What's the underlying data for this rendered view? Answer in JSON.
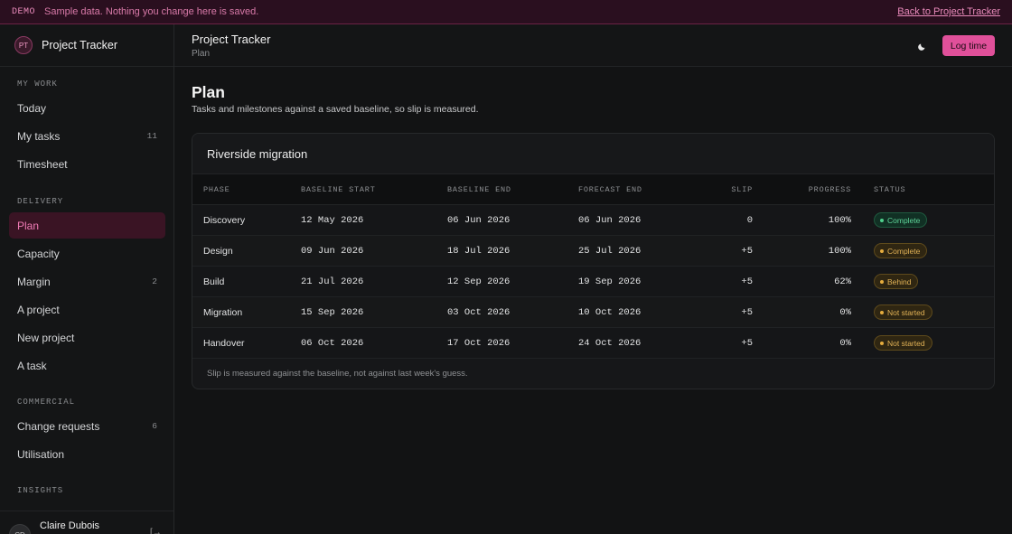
{
  "banner": {
    "tag": "DEMO",
    "message": "Sample data. Nothing you change here is saved.",
    "back_link": "Back to Project Tracker"
  },
  "brand": {
    "initials": "PT",
    "name": "Project Tracker"
  },
  "sidebar": {
    "sections": [
      {
        "title": "MY WORK"
      },
      {
        "title": "DELIVERY"
      },
      {
        "title": "COMMERCIAL"
      },
      {
        "title": "INSIGHTS"
      }
    ],
    "items": [
      {
        "label": "Today",
        "count": ""
      },
      {
        "label": "My tasks",
        "count": "11"
      },
      {
        "label": "Timesheet",
        "count": ""
      },
      {
        "label": "Plan",
        "count": ""
      },
      {
        "label": "Capacity",
        "count": ""
      },
      {
        "label": "Margin",
        "count": "2"
      },
      {
        "label": "A project",
        "count": ""
      },
      {
        "label": "New project",
        "count": ""
      },
      {
        "label": "A task",
        "count": ""
      },
      {
        "label": "Change requests",
        "count": "6"
      },
      {
        "label": "Utilisation",
        "count": ""
      }
    ],
    "active_item": "Plan",
    "user": {
      "initials": "CD",
      "name": "Claire Dubois",
      "logout_glyph": "[→"
    }
  },
  "header": {
    "title": "Project Tracker",
    "subtitle": "Plan",
    "theme_icon": "moon-icon",
    "log_time_label": "Log time"
  },
  "page": {
    "title": "Plan",
    "subtitle": "Tasks and milestones against a saved baseline, so slip is measured."
  },
  "card": {
    "title": "Riverside migration",
    "columns": [
      "PHASE",
      "BASELINE START",
      "BASELINE END",
      "FORECAST END",
      "SLIP",
      "PROGRESS",
      "STATUS"
    ],
    "rows": [
      {
        "phase": "Discovery",
        "baseline_start": "12 May 2026",
        "baseline_end": "06 Jun 2026",
        "forecast_end": "06 Jun 2026",
        "slip": "0",
        "progress": "100%",
        "status": "Complete"
      },
      {
        "phase": "Design",
        "baseline_start": "09 Jun 2026",
        "baseline_end": "18 Jul 2026",
        "forecast_end": "25 Jul 2026",
        "slip": "+5",
        "progress": "100%",
        "status": "Complete"
      },
      {
        "phase": "Build",
        "baseline_start": "21 Jul 2026",
        "baseline_end": "12 Sep 2026",
        "forecast_end": "19 Sep 2026",
        "slip": "+5",
        "progress": "62%",
        "status": "Behind"
      },
      {
        "phase": "Migration",
        "baseline_start": "15 Sep 2026",
        "baseline_end": "03 Oct 2026",
        "forecast_end": "10 Oct 2026",
        "slip": "+5",
        "progress": "0%",
        "status": "Not started"
      },
      {
        "phase": "Handover",
        "baseline_start": "06 Oct 2026",
        "baseline_end": "17 Oct 2026",
        "forecast_end": "24 Oct 2026",
        "slip": "+5",
        "progress": "0%",
        "status": "Not started"
      }
    ],
    "footnote": "Slip is measured against the baseline, not against last week's guess."
  },
  "colors": {
    "accent": "#e0509a",
    "complete": "#4fd08c",
    "warning": "#e6ad3e",
    "background": "#121314"
  }
}
